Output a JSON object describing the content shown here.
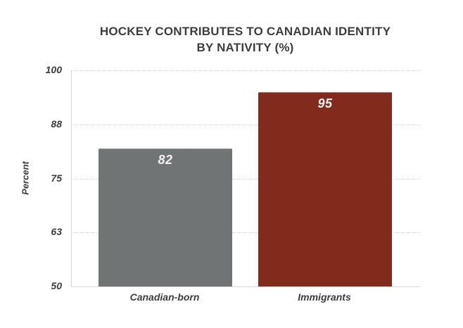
{
  "title": {
    "line1": "HOCKEY CONTRIBUTES TO CANADIAN IDENTITY",
    "line2": "BY NATIVITY (%)"
  },
  "chart_data": {
    "type": "bar",
    "title": "HOCKEY CONTRIBUTES TO CANADIAN IDENTITY BY NATIVITY (%)",
    "categories": [
      "Canadian-born",
      "Immigrants"
    ],
    "values": [
      82,
      95
    ],
    "bar_colors": [
      "#717474",
      "#822A1C"
    ],
    "value_label_color": "#F2F2F2",
    "xlabel": "",
    "ylabel": "Percent",
    "ylim": [
      50,
      100
    ],
    "yticks": [
      100,
      88,
      75,
      63,
      50
    ],
    "grid": "horizontal-dotted",
    "legend": "none",
    "colors": {
      "text": "#3D3D3D",
      "axis": "#D6D6D6",
      "gridline": "#D9D9D9",
      "background": "#FFFFFF"
    }
  }
}
